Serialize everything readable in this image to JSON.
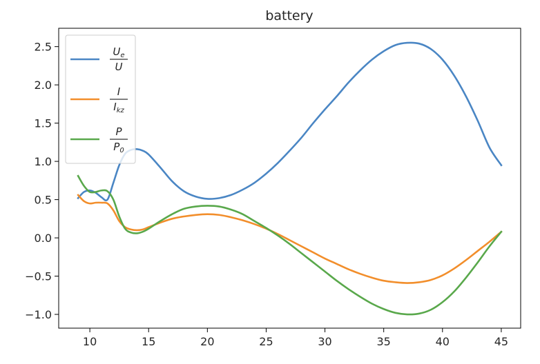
{
  "chart_data": {
    "type": "line",
    "title": "battery",
    "xlabel": "",
    "ylabel": "",
    "xlim": [
      7.35,
      46.65
    ],
    "ylim": [
      -1.18,
      2.74
    ],
    "x_ticks": [
      10,
      15,
      20,
      25,
      30,
      35,
      40,
      45
    ],
    "x_tick_labels": [
      "10",
      "15",
      "20",
      "25",
      "30",
      "35",
      "40",
      "45"
    ],
    "y_ticks": [
      2.5,
      2.0,
      1.5,
      1.0,
      0.5,
      0.0,
      -0.5,
      -1.0
    ],
    "y_tick_labels": [
      "2.5",
      "2.0",
      "1.5",
      "1.0",
      "0.5",
      "0.0",
      "−0.5",
      "−1.0"
    ],
    "grid": false,
    "legend_position": "top-left",
    "x": [
      9,
      9.5,
      10,
      10.5,
      11,
      11.5,
      12,
      12.5,
      13,
      13.5,
      14,
      14.5,
      15,
      16,
      17,
      18,
      19,
      20,
      21,
      22,
      23,
      24,
      25,
      26,
      27,
      28,
      29,
      30,
      31,
      32,
      33,
      34,
      35,
      36,
      37,
      38,
      39,
      40,
      41,
      42,
      43,
      44,
      45
    ],
    "series": [
      {
        "name": "Ue/U",
        "color": "#4a86c4",
        "values": [
          0.52,
          0.6,
          0.62,
          0.59,
          0.53,
          0.5,
          0.72,
          0.95,
          1.1,
          1.15,
          1.16,
          1.14,
          1.09,
          0.92,
          0.74,
          0.61,
          0.54,
          0.51,
          0.52,
          0.56,
          0.63,
          0.72,
          0.84,
          0.98,
          1.14,
          1.31,
          1.5,
          1.68,
          1.85,
          2.03,
          2.19,
          2.33,
          2.44,
          2.52,
          2.55,
          2.54,
          2.47,
          2.33,
          2.12,
          1.85,
          1.53,
          1.18,
          0.95
        ]
      },
      {
        "name": "I/Ikz",
        "color": "#f28e2b",
        "values": [
          0.56,
          0.48,
          0.45,
          0.46,
          0.46,
          0.45,
          0.36,
          0.22,
          0.14,
          0.11,
          0.1,
          0.11,
          0.14,
          0.2,
          0.25,
          0.28,
          0.3,
          0.31,
          0.3,
          0.27,
          0.23,
          0.18,
          0.12,
          0.05,
          -0.03,
          -0.11,
          -0.19,
          -0.27,
          -0.34,
          -0.41,
          -0.47,
          -0.52,
          -0.56,
          -0.58,
          -0.59,
          -0.58,
          -0.55,
          -0.49,
          -0.4,
          -0.29,
          -0.17,
          -0.05,
          0.08
        ]
      },
      {
        "name": "P/P0",
        "color": "#59a84b",
        "values": [
          0.81,
          0.68,
          0.6,
          0.6,
          0.62,
          0.61,
          0.5,
          0.28,
          0.12,
          0.07,
          0.06,
          0.08,
          0.12,
          0.22,
          0.31,
          0.38,
          0.41,
          0.42,
          0.41,
          0.37,
          0.31,
          0.22,
          0.13,
          0.03,
          -0.08,
          -0.2,
          -0.32,
          -0.44,
          -0.56,
          -0.67,
          -0.77,
          -0.86,
          -0.93,
          -0.98,
          -1.0,
          -0.99,
          -0.94,
          -0.84,
          -0.7,
          -0.52,
          -0.32,
          -0.11,
          0.08
        ]
      }
    ],
    "legend": [
      {
        "num": "U",
        "num_sub": "e",
        "den": "U",
        "den_sub": "",
        "color": "#4a86c4"
      },
      {
        "num": "I",
        "num_sub": "",
        "den": "I",
        "den_sub": "kz",
        "color": "#f28e2b"
      },
      {
        "num": "P",
        "num_sub": "",
        "den": "P",
        "den_sub": "0",
        "color": "#59a84b"
      }
    ]
  }
}
